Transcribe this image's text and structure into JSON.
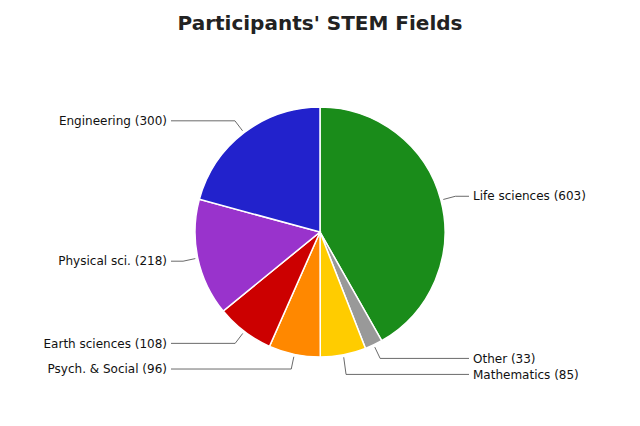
{
  "chart_data": {
    "type": "pie",
    "title": "Participants' STEM Fields",
    "categories": [
      "Life sciences (603)",
      "Other (33)",
      "Mathematics (85)",
      "Psych. & Social (96)",
      "Earth sciences (108)",
      "Physical sci. (218)",
      "Engineering (300)"
    ],
    "values": [
      603,
      33,
      85,
      96,
      108,
      218,
      300
    ],
    "colors": [
      "#1a8c1a",
      "#999999",
      "#ffcc00",
      "#ff8800",
      "#cc0000",
      "#9933cc",
      "#2222cc"
    ]
  }
}
